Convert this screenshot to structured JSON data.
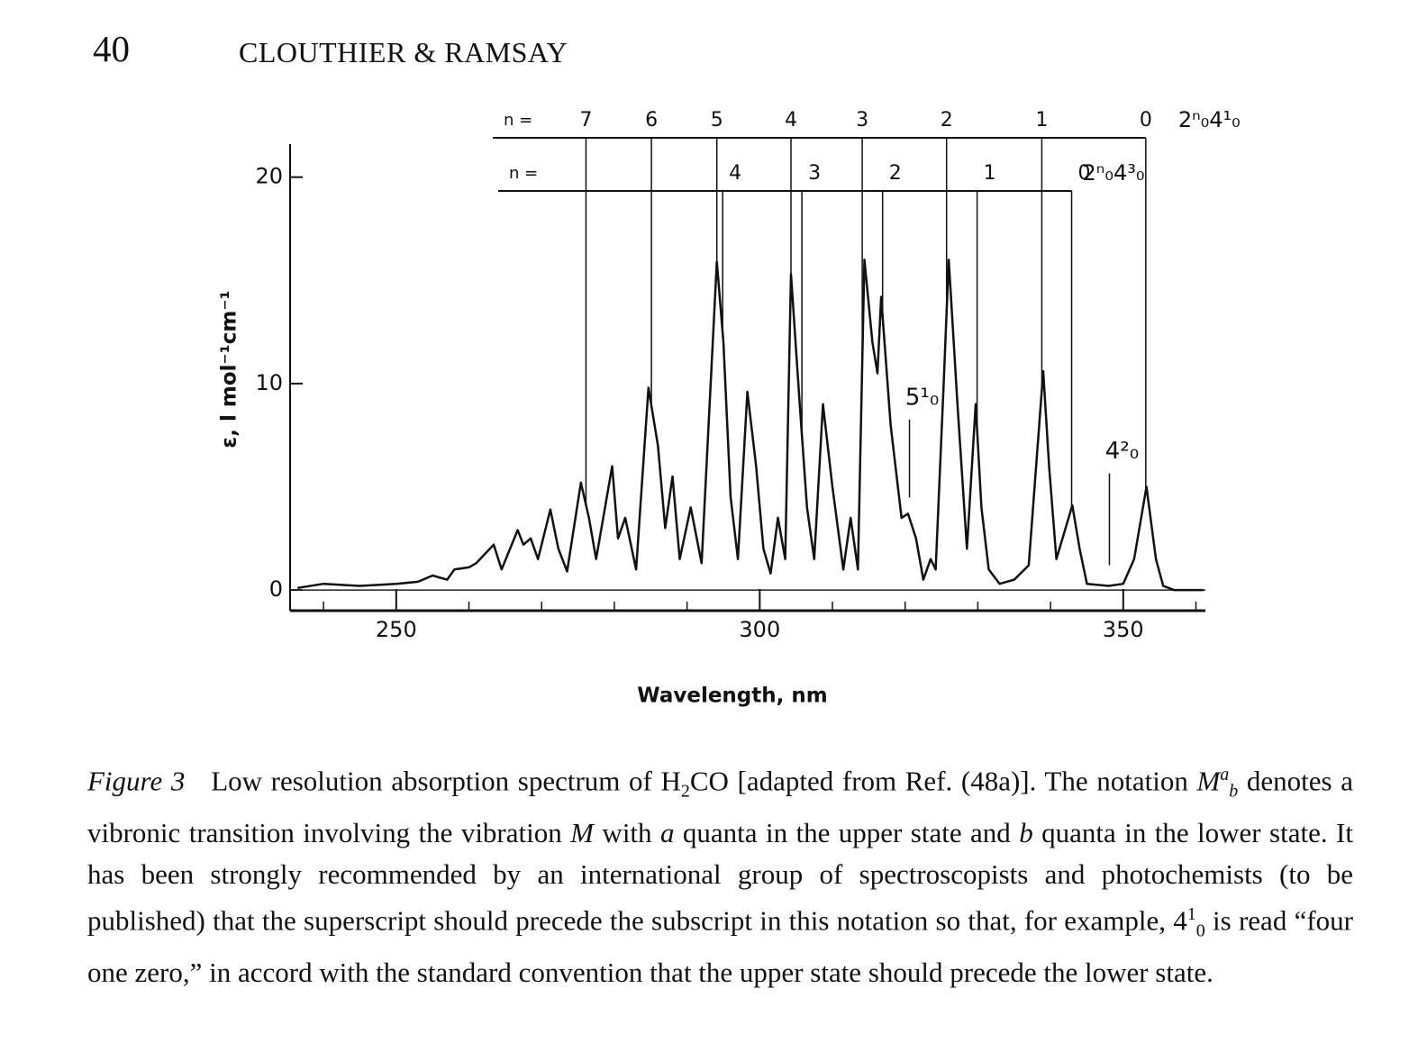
{
  "header": {
    "page_number": "40",
    "running_title": "CLOUTHIER & RAMSAY"
  },
  "chart_data": {
    "type": "line",
    "ylabel": "ε, l mol⁻¹cm⁻¹",
    "xlabel": "Wavelength, nm",
    "xlim": [
      235.4,
      361.3
    ],
    "ylim": [
      -1,
      21.6
    ],
    "xticks": [
      250,
      300,
      350
    ],
    "xminorticks": [
      240,
      260,
      270,
      280,
      290,
      310,
      320,
      330,
      340,
      360
    ],
    "yticks": [
      0,
      10,
      20
    ],
    "color": "#111111",
    "x": [
      236.4,
      240,
      245,
      250,
      253,
      255,
      257,
      258,
      260,
      261,
      263.4,
      264.5,
      266.7,
      267.5,
      268.5,
      269.5,
      271.2,
      272.3,
      273.5,
      275.4,
      276.5,
      277.5,
      279.7,
      280.5,
      281.5,
      283,
      284.7,
      286,
      287,
      288,
      289,
      290.5,
      292,
      294.1,
      295,
      296,
      297,
      298.3,
      299.5,
      300.5,
      301.5,
      302.5,
      303.5,
      304.3,
      305.5,
      306.5,
      307.5,
      308.7,
      310,
      311.5,
      312.5,
      313.5,
      314.4,
      315.5,
      316.2,
      316.7,
      318,
      319.5,
      320.4,
      321.5,
      322.5,
      323.5,
      324.2,
      325.3,
      326,
      327.2,
      328.5,
      329.7,
      330.5,
      331.5,
      333,
      335,
      337,
      339,
      339.8,
      340.8,
      343,
      344,
      345,
      348,
      350,
      351.5,
      353.2,
      354.5,
      355.5,
      357,
      361
    ],
    "values": [
      0.1,
      0.3,
      0.2,
      0.3,
      0.4,
      0.7,
      0.5,
      1.0,
      1.1,
      1.3,
      2.2,
      1.0,
      2.9,
      2.2,
      2.5,
      1.5,
      3.9,
      2.0,
      0.9,
      5.2,
      3.5,
      1.5,
      6.0,
      2.5,
      3.5,
      1.0,
      9.8,
      7.0,
      3.0,
      5.5,
      1.5,
      4.0,
      1.3,
      15.9,
      12,
      4.5,
      1.5,
      9.6,
      6,
      2,
      0.8,
      3.5,
      1.5,
      15.3,
      9,
      4,
      1.5,
      9,
      5,
      1.0,
      3.5,
      1.0,
      16,
      12,
      10.5,
      14.2,
      8,
      3.5,
      3.7,
      2.5,
      0.5,
      1.5,
      1.0,
      10,
      16,
      9,
      2,
      9,
      4,
      1,
      0.3,
      0.5,
      1.2,
      10.6,
      6,
      1.5,
      4.1,
      2,
      0.3,
      0.2,
      0.3,
      1.5,
      5.0,
      1.5,
      0.2,
      0,
      0
    ],
    "progressions": [
      {
        "prefix": "n =",
        "assignment": "2ⁿ₀4¹₀",
        "labels": [
          "7",
          "6",
          "5",
          "4",
          "3",
          "2",
          "1",
          "0"
        ],
        "positions": [
          276.1,
          285.1,
          294.1,
          304.3,
          314.1,
          325.7,
          338.8,
          353.1
        ]
      },
      {
        "prefix": "n =",
        "assignment": "2ⁿ₀4³₀",
        "labels": [
          "4",
          "3",
          "2",
          "1",
          "0"
        ],
        "positions": [
          294.9,
          305.8,
          316.9,
          329.9,
          342.9
        ]
      }
    ],
    "annotations": [
      {
        "text": "5¹₀",
        "x": 320.6,
        "y": 9.3
      },
      {
        "text": "4²₀",
        "x": 348.1,
        "y": 6.7
      }
    ]
  },
  "caption": {
    "label": "Figure 3",
    "parts": [
      "Low resolution absorption spectrum of H",
      "2",
      "CO [adapted from Ref. (48a)]. The notation ",
      "M",
      "a",
      "b",
      " denotes a vibronic transition involving the vibration ",
      "M",
      " with ",
      "a",
      " quanta in the upper state and ",
      "b",
      " quanta in the lower state. It has been strongly recommended by an international group of spectroscopists and photochemists (to be published) that the superscript should precede the subscript in this notation so that, for example, 4",
      "1",
      "0",
      " is read “four one zero,” in accord with the standard convention that the upper state should precede the lower state."
    ]
  }
}
